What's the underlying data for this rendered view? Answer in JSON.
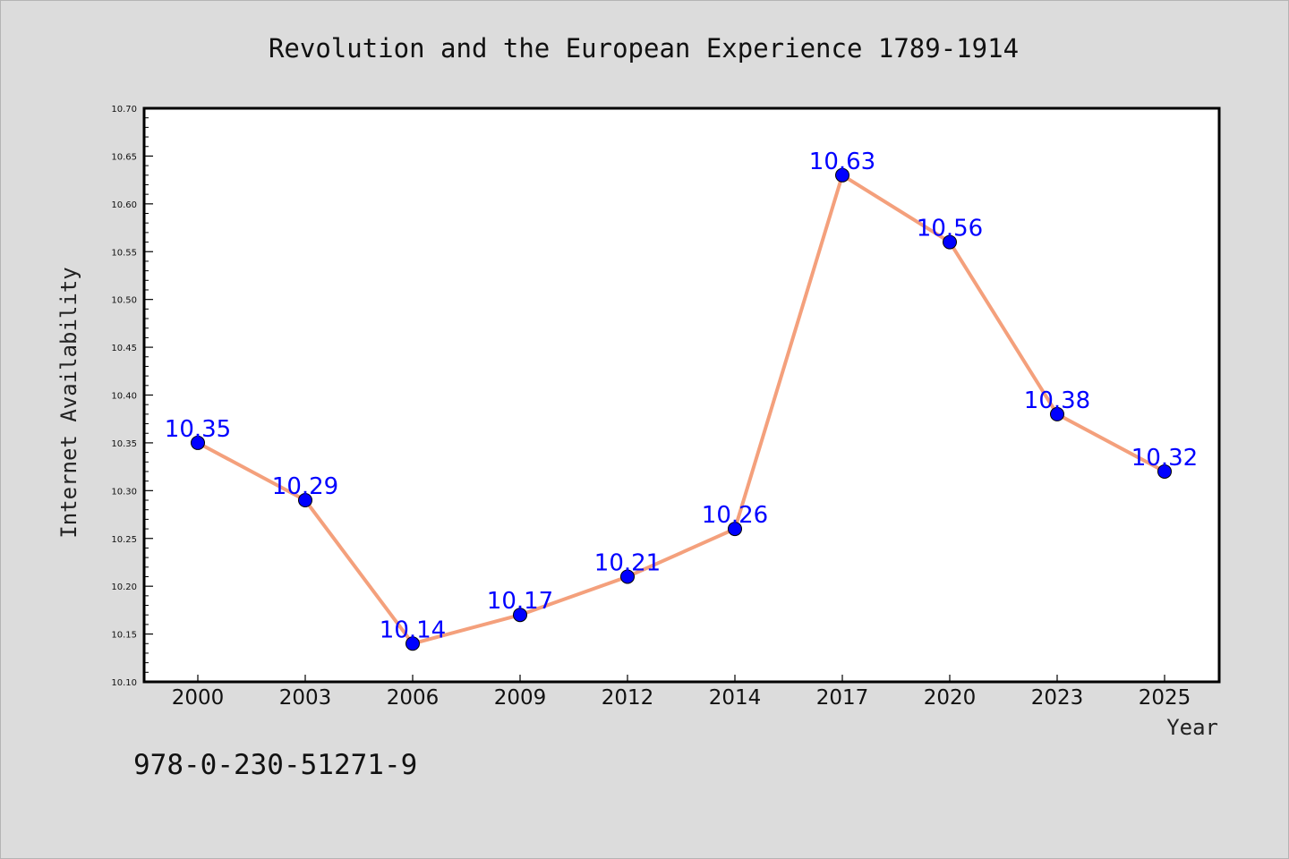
{
  "chart_data": {
    "type": "line",
    "title": "Revolution and the European Experience 1789-1914",
    "xlabel": "Year",
    "ylabel": "Internet Availability",
    "categories": [
      "2000",
      "2003",
      "2006",
      "2009",
      "2012",
      "2014",
      "2017",
      "2020",
      "2023",
      "2025"
    ],
    "series": [
      {
        "values": [
          10.35,
          10.29,
          10.14,
          10.17,
          10.21,
          10.26,
          10.63,
          10.56,
          10.38,
          10.32
        ],
        "data_labels": [
          "10.35",
          "10.29",
          "10.14",
          "10.17",
          "10.21",
          "10.26",
          "10.63",
          "10.56",
          "10.38",
          "10.32"
        ],
        "line_color": "#f4a07c",
        "marker_color": "#0000ff"
      }
    ],
    "ylim": [
      10.1,
      10.7
    ],
    "y_ticks": [
      "10.10",
      "10.15",
      "10.20",
      "10.25",
      "10.30",
      "10.35",
      "10.40",
      "10.45",
      "10.50",
      "10.55",
      "10.60",
      "10.65",
      "10.70"
    ],
    "grid": false,
    "legend": "none",
    "background_color": "#dcdcdc",
    "plot_background_color": "#ffffff"
  },
  "footer": {
    "isbn": "978-0-230-51271-9"
  }
}
